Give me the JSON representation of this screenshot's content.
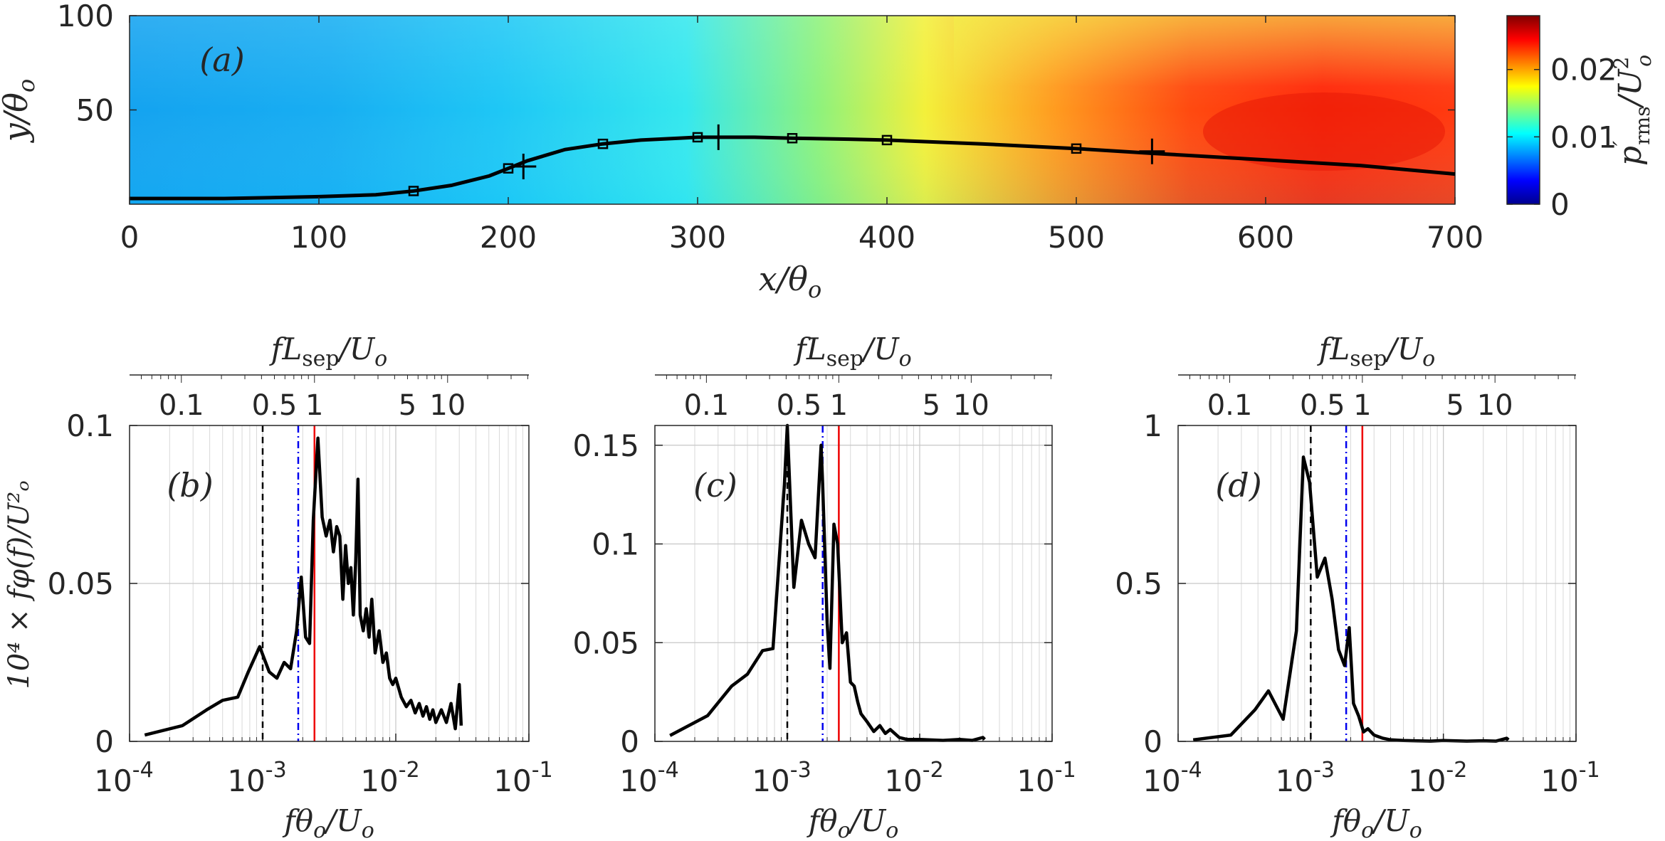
{
  "chart_data": [
    {
      "panel_label": "(a)",
      "type": "heatmap",
      "xlabel_var": "x/θ",
      "xlabel_sub": "o",
      "ylabel_var": "y/θ",
      "ylabel_sub": "o",
      "xlim": [
        0,
        700
      ],
      "ylim": [
        0,
        100
      ],
      "xticks": [
        "0",
        "100",
        "200",
        "300",
        "400",
        "500",
        "600",
        "700"
      ],
      "yticks": [
        "50",
        "100"
      ],
      "colorbar": {
        "label_main": "p",
        "label_sup": "′",
        "label_sub": "rms",
        "label_rest": "/U",
        "label_rest_sup": "2",
        "label_rest_sub": "o",
        "range": [
          0,
          0.028
        ],
        "ticks": [
          "0",
          "0.01",
          "0.02"
        ],
        "colormap": "jet"
      },
      "curve": {
        "x": [
          0,
          50,
          100,
          130,
          150,
          170,
          190,
          200,
          210,
          230,
          250,
          270,
          290,
          300,
          310,
          330,
          350,
          380,
          400,
          450,
          500,
          540,
          600,
          650,
          700
        ],
        "y": [
          3,
          3,
          4,
          5,
          7,
          10,
          15,
          19,
          23,
          29,
          32,
          34,
          35,
          35.5,
          35.5,
          35.5,
          35,
          34.5,
          34,
          32,
          29.5,
          27,
          23.5,
          20.5,
          16
        ]
      },
      "square_markers": {
        "x": [
          150,
          200,
          250,
          300,
          350,
          400,
          500
        ],
        "y": [
          7,
          19,
          32,
          35.5,
          35,
          34,
          29.5
        ]
      },
      "plus_markers": {
        "x": [
          208,
          311,
          540
        ],
        "y": [
          20,
          35.5,
          28
        ]
      }
    },
    {
      "panel_label": "(b)",
      "type": "line",
      "xscale": "log",
      "xlim": [
        0.0001,
        0.1
      ],
      "ylim": [
        0,
        0.1
      ],
      "xlabel_main": "fθ",
      "xlabel_sub": "o",
      "xlabel_rest": "/U",
      "xlabel_rest_sub": "o",
      "ylabel": "10⁴ × fφ(f)/U²ₒ",
      "yticks": [
        "0",
        "0.05",
        "0.1"
      ],
      "xticks_base": [
        "10",
        "10",
        "10",
        "10"
      ],
      "xticks_exp": [
        "-4",
        "-3",
        "-2",
        "-1"
      ],
      "top_axis_label_main": "fL",
      "top_axis_label_sub": "sep",
      "top_axis_label_rest": "/U",
      "top_axis_label_rest_sub": "o",
      "top_ticks": [
        "0.1",
        "0.5",
        "1",
        "5",
        "10"
      ],
      "vlines": {
        "black_dashed": 0.001,
        "blue_dashdot": 0.00185,
        "red_solid": 0.00245
      },
      "series": [
        {
          "x": [
            0.00013,
            0.00025,
            0.00038,
            0.0005,
            0.00065,
            0.00078,
            0.00095,
            0.00112,
            0.00128,
            0.00145,
            0.00162,
            0.0018,
            0.00195,
            0.0021,
            0.00225,
            0.0024,
            0.0026,
            0.0028,
            0.003,
            0.0032,
            0.0034,
            0.0036,
            0.0038,
            0.004,
            0.0042,
            0.0044,
            0.0046,
            0.0048,
            0.005,
            0.0052,
            0.0054,
            0.0057,
            0.006,
            0.0063,
            0.0066,
            0.007,
            0.0075,
            0.008,
            0.0085,
            0.009,
            0.0095,
            0.01,
            0.011,
            0.012,
            0.013,
            0.014,
            0.015,
            0.016,
            0.017,
            0.018,
            0.019,
            0.02,
            0.022,
            0.024,
            0.026,
            0.028,
            0.03,
            0.031
          ],
          "y": [
            0.002,
            0.005,
            0.01,
            0.013,
            0.014,
            0.022,
            0.03,
            0.022,
            0.02,
            0.025,
            0.023,
            0.035,
            0.052,
            0.033,
            0.031,
            0.07,
            0.096,
            0.071,
            0.065,
            0.07,
            0.06,
            0.068,
            0.065,
            0.045,
            0.062,
            0.05,
            0.055,
            0.04,
            0.057,
            0.083,
            0.04,
            0.035,
            0.042,
            0.033,
            0.045,
            0.028,
            0.035,
            0.025,
            0.028,
            0.02,
            0.018,
            0.02,
            0.014,
            0.011,
            0.013,
            0.009,
            0.012,
            0.008,
            0.011,
            0.007,
            0.01,
            0.006,
            0.01,
            0.006,
            0.012,
            0.004,
            0.018,
            0.005
          ]
        }
      ]
    },
    {
      "panel_label": "(c)",
      "type": "line",
      "xscale": "log",
      "xlim": [
        0.0001,
        0.1
      ],
      "ylim": [
        0,
        0.16
      ],
      "xlabel_main": "fθ",
      "xlabel_sub": "o",
      "xlabel_rest": "/U",
      "xlabel_rest_sub": "o",
      "yticks": [
        "0",
        "0.05",
        "0.1",
        "0.15"
      ],
      "xticks_base": [
        "10",
        "10",
        "10",
        "10"
      ],
      "xticks_exp": [
        "-4",
        "-3",
        "-2",
        "-1"
      ],
      "top_axis_label_main": "fL",
      "top_axis_label_sub": "sep",
      "top_axis_label_rest": "/U",
      "top_axis_label_rest_sub": "o",
      "top_ticks": [
        "0.1",
        "0.5",
        "1",
        "5",
        "10"
      ],
      "vlines": {
        "black_dashed": 0.001,
        "blue_dashdot": 0.00185,
        "red_solid": 0.00245
      },
      "series": [
        {
          "x": [
            0.00013,
            0.00025,
            0.00038,
            0.0005,
            0.00065,
            0.00078,
            0.00095,
            0.001,
            0.00112,
            0.00128,
            0.00145,
            0.00162,
            0.0018,
            0.00185,
            0.002,
            0.0021,
            0.00225,
            0.0024,
            0.0026,
            0.0028,
            0.003,
            0.0032,
            0.0034,
            0.0036,
            0.004,
            0.0045,
            0.005,
            0.0055,
            0.006,
            0.007,
            0.008,
            0.01,
            0.015,
            0.02,
            0.025,
            0.03,
            0.031
          ],
          "y": [
            0.003,
            0.013,
            0.028,
            0.034,
            0.046,
            0.047,
            0.13,
            0.16,
            0.078,
            0.112,
            0.1,
            0.093,
            0.15,
            0.13,
            0.06,
            0.037,
            0.11,
            0.1,
            0.05,
            0.055,
            0.03,
            0.028,
            0.02,
            0.014,
            0.01,
            0.005,
            0.008,
            0.004,
            0.006,
            0.002,
            0.001,
            0.001,
            0.0005,
            0.001,
            0.0005,
            0.002,
            0.001
          ]
        }
      ]
    },
    {
      "panel_label": "(d)",
      "type": "line",
      "xscale": "log",
      "xlim": [
        0.0001,
        0.1
      ],
      "ylim": [
        0,
        1
      ],
      "xlabel_main": "fθ",
      "xlabel_sub": "o",
      "xlabel_rest": "/U",
      "xlabel_rest_sub": "o",
      "yticks": [
        "0",
        "0.5",
        "1"
      ],
      "xticks_base": [
        "10",
        "10",
        "10",
        "10"
      ],
      "xticks_exp": [
        "-4",
        "-3",
        "-2",
        "-1"
      ],
      "top_axis_label_main": "fL",
      "top_axis_label_sub": "sep",
      "top_axis_label_rest": "/U",
      "top_axis_label_rest_sub": "o",
      "top_ticks": [
        "0.1",
        "0.5",
        "1",
        "5",
        "10"
      ],
      "vlines": {
        "black_dashed": 0.001,
        "blue_dashdot": 0.00185,
        "red_solid": 0.00245
      },
      "series": [
        {
          "x": [
            0.00013,
            0.00025,
            0.00038,
            0.00048,
            0.00062,
            0.00078,
            0.00088,
            0.00098,
            0.00112,
            0.00128,
            0.00145,
            0.00162,
            0.0018,
            0.00195,
            0.0021,
            0.0023,
            0.0025,
            0.0027,
            0.003,
            0.0035,
            0.004,
            0.005,
            0.006,
            0.008,
            0.01,
            0.015,
            0.02,
            0.025,
            0.03,
            0.031
          ],
          "y": [
            0.005,
            0.02,
            0.1,
            0.16,
            0.07,
            0.35,
            0.9,
            0.82,
            0.52,
            0.58,
            0.45,
            0.29,
            0.24,
            0.36,
            0.12,
            0.08,
            0.03,
            0.04,
            0.02,
            0.01,
            0.005,
            0.003,
            0.002,
            0.001,
            0.003,
            0.001,
            0.002,
            0.001,
            0.01,
            0.005
          ]
        }
      ]
    }
  ]
}
